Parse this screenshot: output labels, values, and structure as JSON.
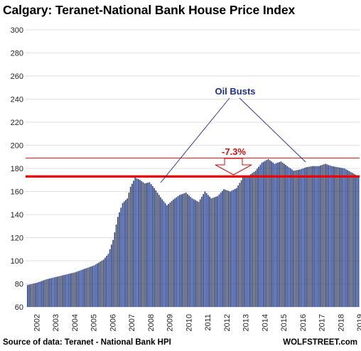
{
  "chart_data": {
    "type": "bar",
    "title": "Calgary: Teranet-National Bank House Price Index",
    "xlabel": "",
    "ylabel": "",
    "ylim": [
      60,
      300
    ],
    "y_ticks": [
      60,
      80,
      100,
      120,
      140,
      160,
      180,
      200,
      220,
      240,
      260,
      280,
      300
    ],
    "x_ticks": [
      "2002",
      "2003",
      "2004",
      "2005",
      "2006",
      "2007",
      "2008",
      "2009",
      "2010",
      "2011",
      "2012",
      "2013",
      "2014",
      "2015",
      "2016",
      "2017",
      "2018",
      "2019"
    ],
    "grid": true,
    "bar_color": "#283c78",
    "series": [
      {
        "frequency": "monthly",
        "start": "2002-01",
        "anchors": [
          [
            "2002-01",
            79
          ],
          [
            "2002-07",
            81
          ],
          [
            "2003-01",
            84
          ],
          [
            "2003-07",
            86
          ],
          [
            "2004-01",
            88
          ],
          [
            "2004-07",
            90
          ],
          [
            "2005-01",
            93
          ],
          [
            "2005-07",
            96
          ],
          [
            "2006-01",
            101
          ],
          [
            "2006-04",
            106
          ],
          [
            "2006-07",
            118
          ],
          [
            "2006-10",
            138
          ],
          [
            "2007-01",
            150
          ],
          [
            "2007-04",
            154
          ],
          [
            "2007-06",
            164
          ],
          [
            "2007-09",
            172
          ],
          [
            "2007-12",
            170
          ],
          [
            "2008-03",
            167
          ],
          [
            "2008-06",
            168
          ],
          [
            "2008-09",
            163
          ],
          [
            "2009-01",
            155
          ],
          [
            "2009-05",
            148
          ],
          [
            "2009-09",
            153
          ],
          [
            "2010-01",
            157
          ],
          [
            "2010-05",
            159
          ],
          [
            "2010-09",
            154
          ],
          [
            "2011-01",
            151
          ],
          [
            "2011-05",
            160
          ],
          [
            "2011-09",
            154
          ],
          [
            "2012-01",
            156
          ],
          [
            "2012-05",
            162
          ],
          [
            "2012-09",
            160
          ],
          [
            "2013-01",
            163
          ],
          [
            "2013-05",
            172
          ],
          [
            "2013-09",
            174
          ],
          [
            "2014-01",
            178
          ],
          [
            "2014-05",
            185
          ],
          [
            "2014-09",
            188
          ],
          [
            "2015-01",
            184
          ],
          [
            "2015-05",
            186
          ],
          [
            "2015-09",
            182
          ],
          [
            "2016-01",
            178
          ],
          [
            "2016-05",
            179
          ],
          [
            "2016-09",
            181
          ],
          [
            "2017-01",
            182
          ],
          [
            "2017-05",
            182
          ],
          [
            "2017-09",
            184
          ],
          [
            "2018-01",
            182
          ],
          [
            "2018-05",
            181
          ],
          [
            "2018-09",
            180
          ],
          [
            "2019-01",
            177
          ],
          [
            "2019-06",
            173
          ]
        ]
      }
    ],
    "reference_lines": [
      {
        "value": 189,
        "color": "#cc1111"
      },
      {
        "value": 173,
        "color": "#ee0000"
      }
    ],
    "annotations": {
      "oil_busts": "Oil Busts",
      "drop": "-7.3%",
      "oil_busts_color": "#1f2f8f",
      "drop_color": "#cc1111"
    },
    "source": "Source of data: Teranet - National Bank HPI",
    "brand": "WOLFSTREET.com"
  }
}
